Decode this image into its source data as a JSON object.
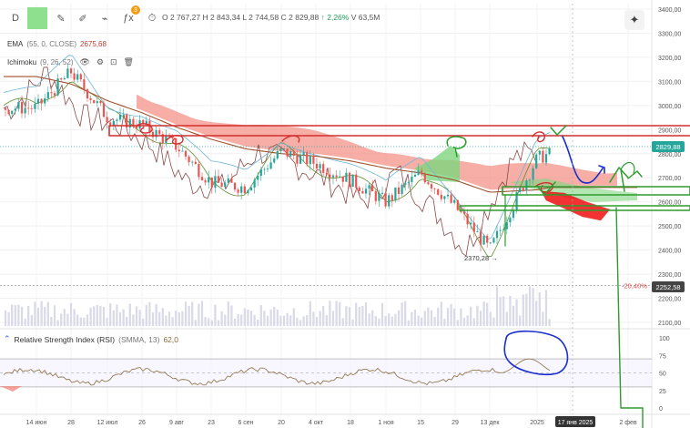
{
  "toolbar": {
    "tools": [
      {
        "name": "symbol-search-button",
        "glyph": "D"
      },
      {
        "name": "interval-button",
        "glyph": "D"
      },
      {
        "name": "compare-icon",
        "glyph": "⊕"
      },
      {
        "name": "indicators-icon",
        "glyph": "ƒx"
      },
      {
        "name": "alert-icon",
        "glyph": "⏰"
      }
    ],
    "badge": "3"
  },
  "ohlc": {
    "open": "O 2 767,27",
    "high": "H 2 843,34",
    "low": "L 2 744,58",
    "close": "C 2 829,88",
    "change": "↑ 2,26%",
    "volume": "V 63,5M"
  },
  "indicators": {
    "ema": {
      "name": "EMA",
      "params": "(55, 0, CLOSE)",
      "value": "2675,68"
    },
    "ichimoku": {
      "name": "Ichimoku",
      "params": "(9, 26, 52)"
    },
    "rsi": {
      "name": "Relative Strength Index (RSI)",
      "params": "(SMMA, 13)",
      "value": "62,0"
    }
  },
  "price_axis": {
    "labels": [
      "3400,00",
      "3300,00",
      "3200,00",
      "3100,00",
      "3000,00",
      "2900,00",
      "2800,00",
      "2700,00",
      "2600,00",
      "2500,00",
      "2400,00",
      "2300,00",
      "2200,00",
      "2100,00"
    ],
    "current_price": "2829,88",
    "marker_price": "2252,58",
    "marker_pct": "-20,40%"
  },
  "rsi_axis": {
    "labels": [
      "100",
      "75",
      "50",
      "25",
      "0"
    ]
  },
  "time_axis": {
    "labels": [
      "14 июн",
      "28",
      "12 июл",
      "26",
      "9 авг",
      "23",
      "6 сен",
      "20",
      "4 окт",
      "18",
      "1 ноя",
      "15",
      "29",
      "13 дек",
      "2025",
      "17 янв 2025",
      "2 фев"
    ]
  },
  "annotations": {
    "low_label": "2370,28"
  },
  "chart_data": {
    "type": "line",
    "title": "",
    "ylim": [
      2050,
      3420
    ],
    "x": [
      "14 июн",
      "28",
      "12 июл",
      "26",
      "9 авг",
      "23",
      "6 сен",
      "20",
      "4 окт",
      "18",
      "1 ноя",
      "15",
      "29",
      "13 дек",
      "2025",
      "17 янв 2025"
    ],
    "series": [
      {
        "name": "",
        "values": [
          2990,
          3140,
          2950,
          2920,
          2830,
          2680,
          2660,
          2810,
          2760,
          2690,
          2600,
          2720,
          2580,
          2400,
          2780,
          2829
        ]
      },
      {
        "name": "EMA",
        "values": [
          3120,
          3090,
          3020,
          2970,
          2910,
          2860,
          2820,
          2800,
          2790,
          2770,
          2740,
          2720,
          2690,
          2640,
          2650,
          2676
        ]
      }
    ],
    "rsi": {
      "ylim": [
        0,
        100
      ],
      "levels": [
        70,
        50,
        30
      ],
      "current": 62.0
    },
    "grid": true
  },
  "colors": {
    "bull": "#26a69a",
    "bear": "#ef5350",
    "ema": "#a0522d",
    "cloud_bear": "#f28b82",
    "cloud_bull": "#7ed67e",
    "drawing_red": "#d32f2f",
    "drawing_green": "#2e9b2e",
    "drawing_blue": "#1a2ecc"
  }
}
